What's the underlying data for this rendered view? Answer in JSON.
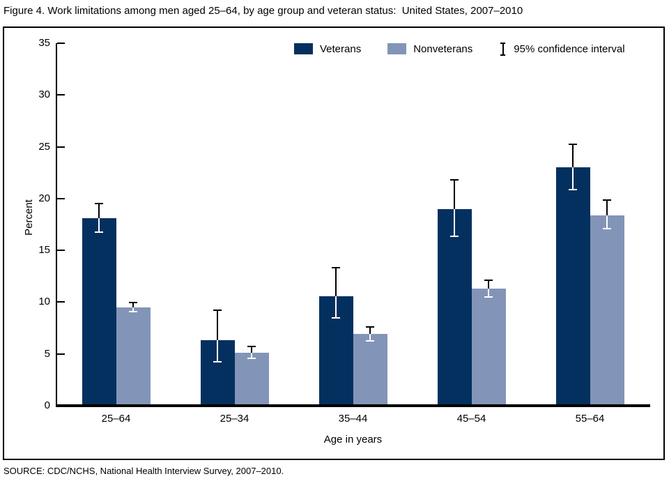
{
  "chart_data": {
    "type": "bar",
    "title": "Figure 4. Work limitations among men aged 25–64, by age group and veteran status:  United States, 2007–2010",
    "xlabel": "Age in years",
    "ylabel": "Percent",
    "ylim": [
      0,
      35
    ],
    "ytick_step": 5,
    "yticks": [
      0,
      5,
      10,
      15,
      20,
      25,
      30,
      35
    ],
    "grid": false,
    "legend_position": "top-right-inside",
    "categories": [
      "25–64",
      "25–34",
      "35–44",
      "45–54",
      "55–64"
    ],
    "series": [
      {
        "name": "Veterans",
        "color": "#04305f",
        "values": [
          18.1,
          6.3,
          10.6,
          19.0,
          23.0
        ],
        "ci_low": [
          16.7,
          4.2,
          8.4,
          16.3,
          20.8
        ],
        "ci_high": [
          19.6,
          9.3,
          13.4,
          21.9,
          25.3
        ]
      },
      {
        "name": "Nonveterans",
        "color": "#8295b8",
        "values": [
          9.5,
          5.1,
          6.9,
          11.3,
          18.4
        ],
        "ci_low": [
          9.0,
          4.5,
          6.2,
          10.4,
          17.0
        ],
        "ci_high": [
          10.0,
          5.8,
          7.7,
          12.2,
          19.9
        ]
      }
    ],
    "ci_legend_label": "95% confidence interval",
    "source_note": "SOURCE: CDC/NCHS, National Health Interview Survey, 2007–2010."
  }
}
